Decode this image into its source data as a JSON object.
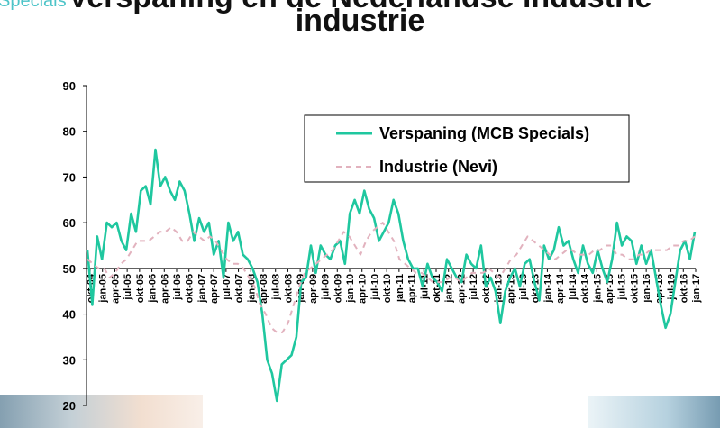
{
  "header": {
    "brand": "Specials",
    "title_line1": "Verspaning en de Nederlandse industrie",
    "title_line2": "industrie"
  },
  "chart_data": {
    "type": "line",
    "title": "Verspaning en de Nederlandse industrie",
    "ylim": [
      20,
      90
    ],
    "yticks": [
      20,
      30,
      40,
      50,
      60,
      70,
      80,
      90
    ],
    "baseline": 50,
    "grid": false,
    "legend_position": "top-right",
    "xlabels": [
      "okt-04",
      "jan-05",
      "apr-05",
      "jul-05",
      "okt-05",
      "jan-06",
      "apr-06",
      "jul-06",
      "okt-06",
      "jan-07",
      "apr-07",
      "jul-07",
      "okt-07",
      "jan-08",
      "apr-08",
      "jul-08",
      "okt-08",
      "jan-09",
      "apr-09",
      "jul-09",
      "okt-09",
      "jan-10",
      "apr-10",
      "jul-10",
      "okt-10",
      "jan-11",
      "apr-11",
      "jul-11",
      "okt-11",
      "jan-12",
      "apr-12",
      "jul-12",
      "okt-12",
      "jan-13",
      "apr-13",
      "jul-13",
      "okt-13",
      "jan-14",
      "apr-14",
      "jul-14",
      "okt-14",
      "jan-15",
      "apr-15",
      "jul-15",
      "okt-15",
      "jan-16",
      "apr-16",
      "jul-16",
      "okt-16",
      "jan-17"
    ],
    "series": [
      {
        "name": "Verspaning (MCB Specials)",
        "color": "#1fc79f",
        "style": "solid",
        "values": [
          54,
          42,
          57,
          52,
          60,
          59,
          60,
          56,
          54,
          62,
          58,
          67,
          68,
          64,
          76,
          68,
          70,
          67,
          65,
          69,
          67,
          62,
          56,
          61,
          58,
          60,
          53,
          56,
          48,
          60,
          56,
          58,
          53,
          52,
          50,
          47,
          40,
          30,
          27,
          21,
          29,
          30,
          31,
          35,
          47,
          48,
          55,
          49,
          55,
          53,
          52,
          55,
          56,
          51,
          62,
          65,
          62,
          67,
          63,
          61,
          56,
          58,
          60,
          65,
          62,
          56,
          52,
          50,
          50,
          46,
          51,
          48,
          47,
          45,
          52,
          50,
          48,
          47,
          53,
          51,
          50,
          55,
          46,
          48,
          45,
          38,
          45,
          48,
          50,
          46,
          51,
          52,
          47,
          43,
          55,
          52,
          54,
          59,
          55,
          56,
          52,
          49,
          55,
          51,
          49,
          54,
          50,
          47,
          52,
          60,
          55,
          57,
          56,
          51,
          55,
          51,
          54,
          48,
          42,
          37,
          40,
          47,
          54,
          56,
          52,
          58
        ]
      },
      {
        "name": "Industrie (Nevi)",
        "color": "#e2b2be",
        "style": "dashed",
        "values": [
          52,
          51,
          50,
          50,
          48,
          49,
          51,
          52,
          54,
          56,
          56,
          56,
          57,
          58,
          58,
          59,
          58,
          56,
          56,
          58,
          57,
          56,
          57,
          56,
          54,
          52,
          51,
          51,
          50,
          48,
          46,
          42,
          40,
          37,
          36,
          36,
          38,
          42,
          46,
          49,
          50,
          51,
          52,
          53,
          54,
          56,
          58,
          57,
          55,
          53,
          56,
          58,
          59,
          60,
          58,
          56,
          52,
          51,
          50,
          49,
          49,
          48,
          47,
          47,
          47,
          48,
          48,
          47,
          48,
          49,
          49,
          49,
          50,
          49,
          48,
          50,
          52,
          53,
          55,
          57,
          56,
          55,
          54,
          53,
          52,
          53,
          54,
          54,
          53,
          53,
          53,
          54,
          54,
          55,
          55,
          53,
          53,
          52,
          52,
          53,
          53,
          54,
          54,
          54,
          54,
          55,
          55,
          56,
          56,
          57
        ]
      }
    ]
  }
}
